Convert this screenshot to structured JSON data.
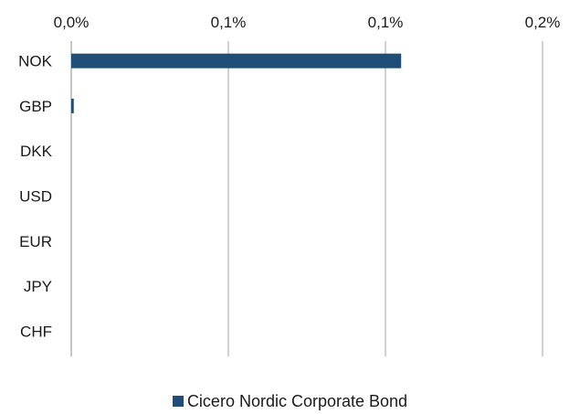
{
  "chart_data": {
    "type": "bar",
    "orientation": "horizontal",
    "categories": [
      "NOK",
      "GBP",
      "DKK",
      "USD",
      "EUR",
      "JPY",
      "CHF"
    ],
    "series": [
      {
        "name": "Cicero Nordic Corporate Bond",
        "color": "#1f4e79",
        "values": [
          0.105,
          0.0008,
          0,
          0,
          0,
          0,
          0
        ]
      }
    ],
    "x_ticks": [
      {
        "value": 0.0,
        "label": "0,0%"
      },
      {
        "value": 0.05,
        "label": "0,1%"
      },
      {
        "value": 0.1,
        "label": "0,1%"
      },
      {
        "value": 0.15,
        "label": "0,2%"
      }
    ],
    "xlim": [
      0,
      0.15
    ],
    "x_axis_position": "top",
    "grid": true,
    "legend_position": "bottom"
  }
}
